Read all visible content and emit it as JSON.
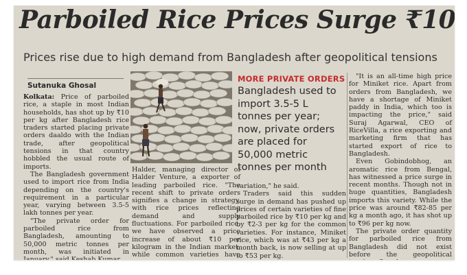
{
  "article": {
    "headline": "Parboiled Rice Prices Surge ₹10 Per Kg",
    "subhead": "Prices rise due to high demand from Bangladesh after geopolitical tensions",
    "byline": "Sutanuka Ghosal",
    "pull_label": "MORE PRIVATE ORDERS",
    "pull_quote": "Bangladesh used to import 3.5-5 L tonnes per year; now, private orders are placed for 50,000 metric tonnes per month",
    "col1": {
      "dateline": "Kolkata:",
      "p1": "Price of parboiled rice, a staple in most Indian households, has shot up by ₹10 per kg after Bangladesh rice traders started placing private orders daaldo with the Indian trade, after geopolitical tensions in that country hobbled the usual route of imports.",
      "p2": "The Bangladesh government used to import rice from India depending on the country's requirement in a particular year, varying between 3.5-5 lakh tonnes per year.",
      "p3": "\"The private order for parboiled rice from Bangladesh, amounting to 50,000 metric tonnes per month, was initiated in January,\" said Keshab Kumar"
    },
    "col2": {
      "p1": "Halder, managing director of Halder Venture, a exporter of leading parboiled rice. \"The recent shift to private orders signifies a change in strategy, with rice prices reflecting demand and supply fluctuations. For parboiled rice, we have observed a price increase of about ₹10 per kilogram in the Indian market, while common varieties have seen a smaller"
    },
    "col3": {
      "p1": "variation,\" he said.",
      "p2": "Traders said this sudden surge in demand has pushed up prices of certain varieties of fine parboiled rice by ₹10 per kg and by ₹2-3 per kg for the common varieties. For instance, Miniket rice, which was at ₹43 per kg a month back, is now selling at up to ₹53 per kg."
    },
    "col4": {
      "p1": "\"It is an all-time high price for Miniket rice. Apart from orders from Bangladesh, we have a shortage of Miniket paddy in India, which too is impacting the price,\" said Suraj Agarwal, CEO of RiceVilla, a rice exporting and marketing firm that has started export of rice to Bangladesh.",
      "p2": "Even Gobindobhog, an aromatic rice from Bengal, has witnessed a price surge in recent months. Though not in huge quantities, Bangladesh imports this variety. While the price was around ₹82-85 per kg a month ago, it has shot up to ₹96 per kg now.",
      "p3": "The private order quantity for parboiled rice from Bangladesh did not exist before the geopolitical tensions flared up."
    }
  },
  "colors": {
    "paper": "#dcd7cc",
    "ink": "#2a2a2a",
    "accent_red": "#c42b2b"
  }
}
